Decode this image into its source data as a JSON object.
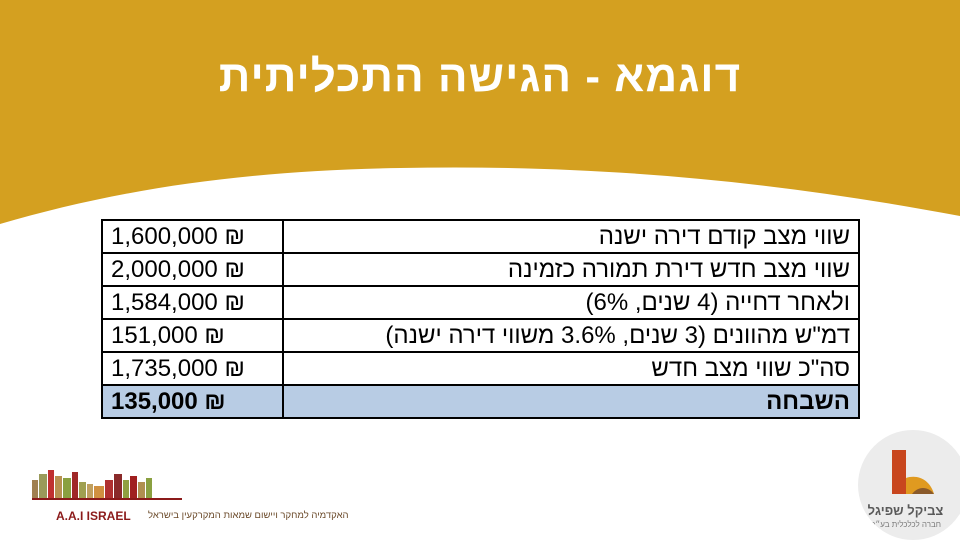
{
  "title": "דוגמא - הגישה התכליתית",
  "colors": {
    "banner": "#d4a020",
    "total_row": "#b8cce4"
  },
  "table": {
    "rows": [
      {
        "label": "שווי מצב קודם דירה ישנה",
        "amount": "1,600,000 ₪"
      },
      {
        "label": "שווי מצב חדש דירת תמורה כזמינה",
        "amount": "2,000,000 ₪"
      },
      {
        "label": "ולאחר דחייה (4 שנים, 6%)",
        "amount": "1,584,000 ₪"
      },
      {
        "label": "דמ\"ש מהוונים (3 שנים, 3.6% משווי דירה ישנה)",
        "amount": "151,000 ₪"
      },
      {
        "label": "סה\"כ שווי מצב חדש",
        "amount": "1,735,000 ₪"
      }
    ],
    "total": {
      "label": "השבחה",
      "amount": "135,000 ₪"
    }
  },
  "logos": {
    "aai": {
      "brand": "A.A.I ISRAEL",
      "tagline": "האקדמיה למחקר ויישום שמאות המקרקעין בישראל"
    },
    "spiegel": {
      "name": "צביקל שפיגל",
      "tagline": "חברה לכלכלית בע״מ"
    }
  }
}
